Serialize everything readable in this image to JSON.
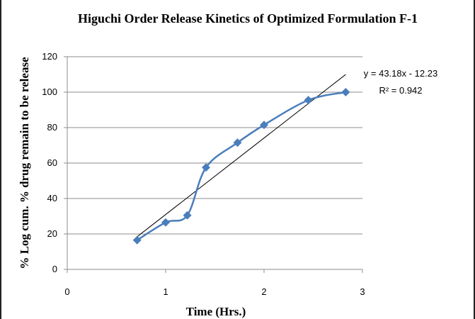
{
  "chart_data": {
    "type": "scatter",
    "title": "Higuchi Order Release Kinetics of Optimized Formulation F-1",
    "xlabel": "Time (Hrs.)",
    "ylabel": "% Log cum. % drug remain to be release",
    "xlim": [
      0,
      3
    ],
    "ylim": [
      0,
      120
    ],
    "x_ticks": [
      "0",
      "1",
      "2",
      "3"
    ],
    "y_ticks": [
      "0",
      "20",
      "40",
      "60",
      "80",
      "100",
      "120"
    ],
    "grid": true,
    "series": [
      {
        "x": [
          0.71,
          1.0,
          1.22,
          1.41,
          1.73,
          2.0,
          2.45,
          2.83
        ],
        "y": [
          16.5,
          26.5,
          30.5,
          57.5,
          71.5,
          81.5,
          95.5,
          100
        ],
        "color": "#4a7ebb",
        "marker": "diamond",
        "smooth": true
      }
    ],
    "trendline": {
      "type": "linear",
      "slope": 43.18,
      "intercept": -12.23,
      "x_range": [
        0.71,
        2.83
      ],
      "color": "#000000",
      "equation_label": "y = 43.18x - 12.23",
      "r2_label": "R² = 0.942"
    }
  }
}
